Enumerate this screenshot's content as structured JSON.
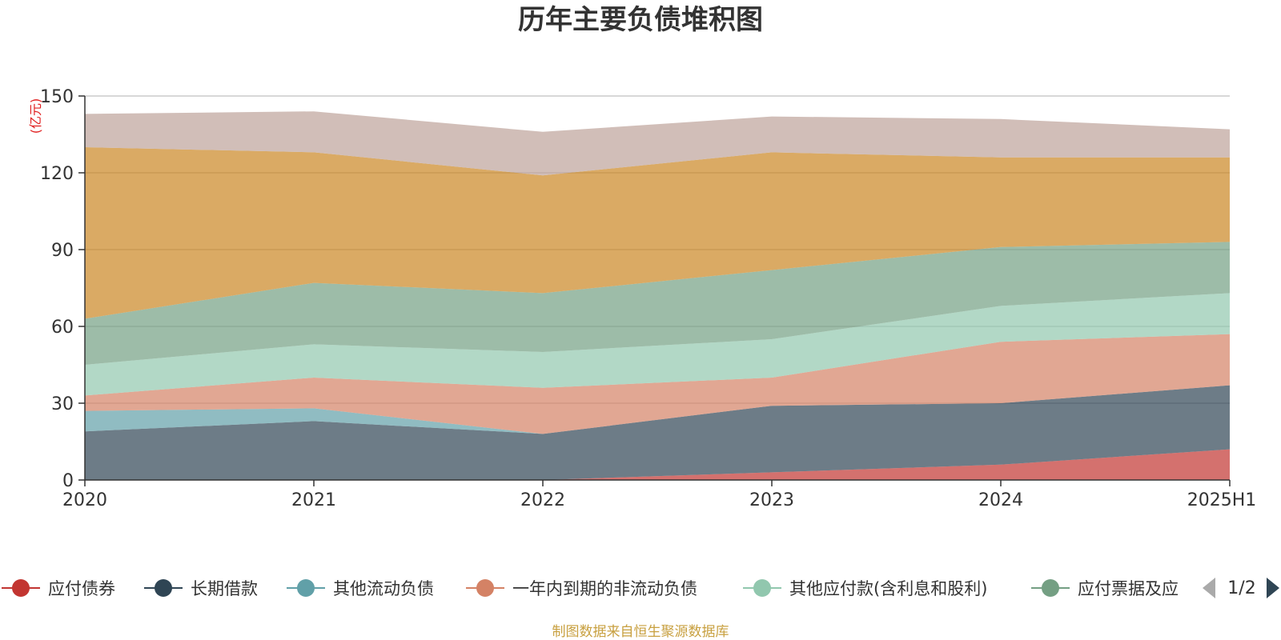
{
  "chart_data": {
    "type": "area",
    "stacked": true,
    "title": "历年主要负债堆积图",
    "unit_label": "(亿元)",
    "categories": [
      "2020",
      "2021",
      "2022",
      "2023",
      "2024",
      "2025H1"
    ],
    "ylim": [
      0,
      150
    ],
    "yticks": [
      0,
      30,
      60,
      90,
      120,
      150
    ],
    "grid": true,
    "series": [
      {
        "name": "应付债券",
        "color": "#c23531",
        "values": [
          0,
          0,
          0,
          3,
          6,
          12
        ]
      },
      {
        "name": "长期借款",
        "color": "#2f4554",
        "values": [
          19,
          23,
          18,
          26,
          24,
          25
        ]
      },
      {
        "name": "其他流动负债",
        "color": "#61a0a8",
        "values": [
          8,
          5,
          0,
          0,
          0,
          0
        ]
      },
      {
        "name": "一年内到期的非流动负债",
        "color": "#d48265",
        "values": [
          6,
          12,
          18,
          11,
          24,
          20
        ]
      },
      {
        "name": "其他应付款(含利息和股利)",
        "color": "#91c7ae",
        "values": [
          12,
          13,
          14,
          15,
          14,
          16
        ]
      },
      {
        "name": "应付票据及应付账款",
        "color": "#749f83",
        "values": [
          18,
          24,
          23,
          27,
          23,
          20
        ]
      },
      {
        "name": "",
        "color": "#ca8622",
        "values": [
          67,
          51,
          46,
          46,
          35,
          33
        ]
      },
      {
        "name": "",
        "color": "#bda29a",
        "values": [
          13,
          16,
          17,
          14,
          15,
          11
        ]
      }
    ],
    "legend": {
      "position": "bottom",
      "visible_entries": [
        "应付债券",
        "长期借款",
        "其他流动负债",
        "一年内到期的非流动负债",
        "其他应付款(含利息和股利)",
        "应付票据及应"
      ],
      "page_indicator": "1/2"
    },
    "source_note": "制图数据来自恒生聚源数据库"
  }
}
